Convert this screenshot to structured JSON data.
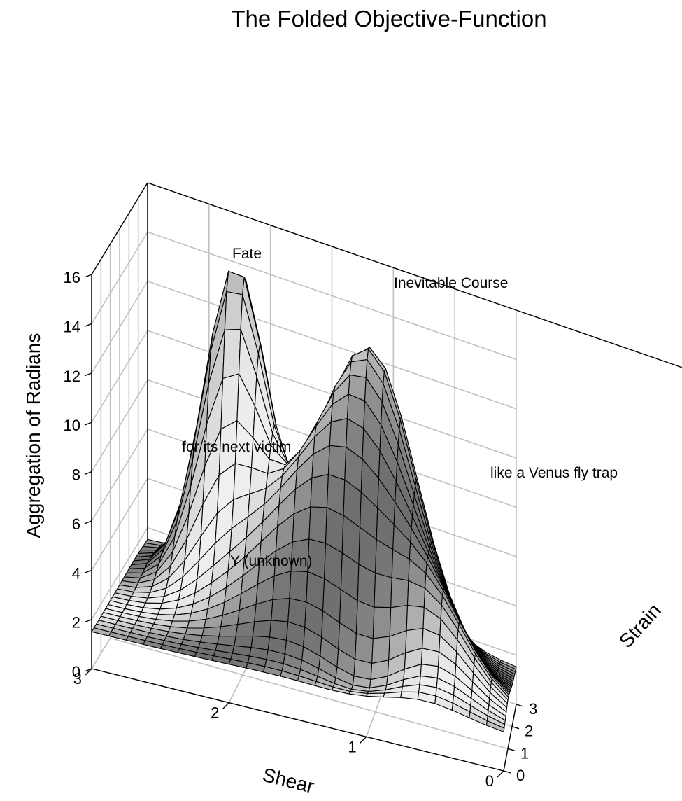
{
  "chart_data": {
    "type": "surface3d",
    "title": "The Folded Objective-Function",
    "xlabel": "Shear",
    "ylabel": "Strain",
    "zlabel": "Aggregation of Radians",
    "x_ticks": [
      "0",
      "1",
      "2",
      "3"
    ],
    "y_ticks": [
      "0",
      "1",
      "2",
      "3"
    ],
    "z_ticks": [
      "0",
      "2",
      "4",
      "6",
      "8",
      "10",
      "12",
      "14",
      "16"
    ],
    "xlim": [
      0,
      3
    ],
    "ylim": [
      0,
      3
    ],
    "zlim": [
      0,
      16
    ],
    "grid": true,
    "surface_color": "#b0b0b0",
    "mesh_color": "#000000",
    "grid_color": "#c0c0c0",
    "annotations": [
      {
        "text": "Fate"
      },
      {
        "text": "Inevitable Course"
      },
      {
        "text": "for its next victim"
      },
      {
        "text": "like a Venus fly trap"
      },
      {
        "text": "Y (unknown)"
      }
    ]
  }
}
